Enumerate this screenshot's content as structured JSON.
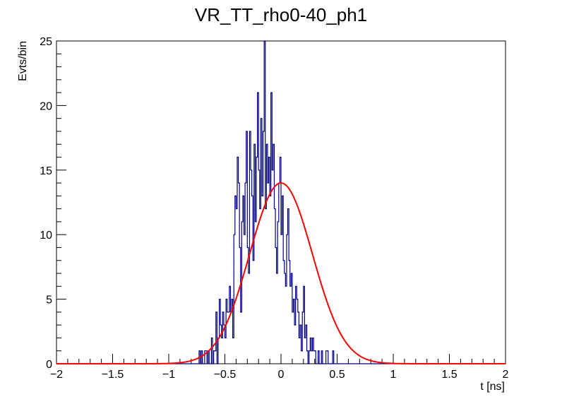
{
  "chart_data": {
    "type": "histogram",
    "title": "VR_TT_rho0-40_ph1",
    "xlabel": "t [ns]",
    "ylabel": "Evts/bin",
    "xlim": [
      -2,
      2
    ],
    "ylim": [
      0,
      25
    ],
    "x_ticks": [
      "-2",
      "-1.5",
      "-1",
      "-0.5",
      "0",
      "0.5",
      "1",
      "1.5",
      "2"
    ],
    "y_ticks": [
      "0",
      "5",
      "10",
      "15",
      "20",
      "25"
    ],
    "grid": false,
    "histogram": {
      "bin_start": -2,
      "bin_width": 0.01,
      "color": "#000080",
      "counts": [
        0,
        0,
        0,
        0,
        0,
        0,
        0,
        0,
        0,
        0,
        0,
        0,
        0,
        0,
        0,
        0,
        0,
        0,
        0,
        0,
        0,
        0,
        0,
        0,
        0,
        0,
        0,
        0,
        0,
        0,
        0,
        0,
        0,
        0,
        0,
        0,
        0,
        0,
        0,
        0,
        0,
        0,
        0,
        0,
        0,
        0,
        0,
        0,
        0,
        0,
        0,
        0,
        0,
        0,
        0,
        0,
        0,
        0,
        0,
        0,
        0,
        0,
        0,
        0,
        0,
        0,
        0,
        0,
        0,
        0,
        0,
        0,
        0,
        0,
        0,
        0,
        0,
        0,
        0,
        0,
        0,
        0,
        0,
        0,
        0,
        0,
        0,
        0,
        0,
        0,
        0,
        0,
        0,
        0,
        0,
        0,
        0,
        0,
        0,
        0,
        0,
        0,
        0,
        0,
        0,
        0,
        0,
        0,
        0,
        0,
        0,
        0,
        0,
        0,
        0,
        0,
        0,
        0,
        0,
        0,
        0,
        0,
        0,
        0,
        0,
        0,
        0,
        1,
        0,
        1,
        0,
        0,
        1,
        1,
        0,
        1,
        0,
        0,
        2,
        0,
        1,
        1,
        4,
        0,
        2,
        5,
        3,
        2,
        4,
        3,
        2,
        5,
        4,
        4,
        6,
        4,
        5,
        2,
        10,
        13,
        12,
        16,
        14,
        9,
        4,
        11,
        13,
        10,
        14,
        18,
        9,
        7,
        18,
        15,
        13,
        8,
        17,
        11,
        16,
        21,
        15,
        12,
        19,
        13,
        18,
        25,
        12,
        17,
        14,
        16,
        13,
        21,
        15,
        17,
        12,
        9,
        7,
        11,
        14,
        16,
        10,
        13,
        8,
        7,
        6,
        10,
        12,
        8,
        6,
        7,
        4,
        5,
        3,
        6,
        5,
        4,
        2,
        3,
        1,
        4,
        6,
        2,
        3,
        1,
        0,
        1,
        2,
        1,
        2,
        1,
        1,
        0,
        0,
        1,
        0,
        0,
        1,
        0,
        0,
        0,
        1,
        1,
        0,
        0,
        0,
        0,
        1,
        0,
        0,
        0,
        0,
        0,
        0,
        0,
        0,
        0,
        0,
        0,
        0,
        0,
        0,
        0,
        0,
        0,
        0,
        0,
        0,
        0,
        0,
        0,
        0,
        0,
        0,
        0,
        0,
        0,
        0,
        0,
        0,
        0,
        0,
        0,
        0,
        0,
        0,
        0,
        0,
        0,
        0,
        0,
        0,
        0,
        0,
        0,
        0,
        0,
        0,
        0,
        0,
        0,
        0,
        0,
        0,
        0,
        0,
        0,
        0,
        0,
        0,
        0,
        0,
        0,
        0,
        0,
        0,
        0,
        0,
        0,
        0,
        0,
        0,
        0,
        0,
        0,
        0,
        0,
        0,
        0,
        0,
        0,
        0,
        0,
        0,
        0,
        0,
        0,
        0,
        0,
        0,
        0,
        0,
        0,
        0,
        0,
        0,
        0,
        0,
        0,
        0,
        0,
        0,
        0,
        0,
        0,
        0,
        0,
        0,
        0,
        0,
        0,
        0,
        0,
        0,
        0,
        0,
        0,
        0,
        0,
        0,
        0,
        0,
        0,
        0,
        0
      ]
    },
    "fit": {
      "type": "gaussian",
      "color": "#ff0000",
      "amplitude": 14.0,
      "mean": 0.0,
      "sigma": 0.28,
      "x_range": [
        -2,
        2
      ]
    }
  }
}
